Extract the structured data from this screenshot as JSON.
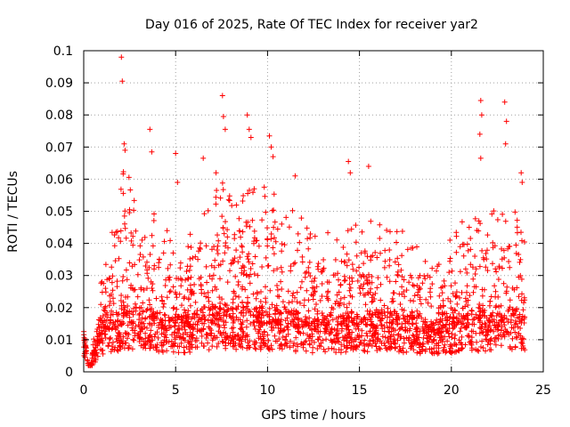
{
  "chart_data": {
    "type": "scatter",
    "title": "Day 016 of 2025, Rate Of TEC Index for receiver yar2",
    "xlabel": "GPS time / hours",
    "ylabel": "ROTI / TECUs",
    "xlim": [
      0,
      25
    ],
    "ylim": [
      0,
      0.1
    ],
    "x_ticks": [
      0,
      5,
      10,
      15,
      20,
      25
    ],
    "y_ticks": [
      0,
      0.01,
      0.02,
      0.03,
      0.04,
      0.05,
      0.06,
      0.07,
      0.08,
      0.09,
      0.1
    ],
    "grid": true,
    "marker": "+",
    "marker_color": "#ff0000",
    "series": [
      {
        "name": "ROTI",
        "envelope": {
          "x": [
            0.0,
            0.3,
            0.9,
            1.3,
            1.8,
            2.2,
            2.6,
            3.0,
            3.5,
            4.0,
            4.5,
            5.0,
            5.5,
            6.0,
            6.5,
            7.0,
            7.5,
            8.0,
            8.5,
            9.0,
            9.5,
            10.0,
            10.5,
            11.0,
            11.5,
            12.0,
            12.5,
            13.0,
            13.5,
            14.0,
            14.5,
            15.0,
            15.5,
            16.0,
            16.5,
            17.0,
            17.5,
            18.0,
            18.5,
            19.0,
            19.5,
            20.0,
            20.5,
            21.0,
            21.5,
            22.0,
            22.5,
            23.0,
            23.5,
            23.9
          ],
          "p95": [
            0.012,
            0.0,
            0.02,
            0.03,
            0.036,
            0.05,
            0.045,
            0.04,
            0.042,
            0.035,
            0.035,
            0.03,
            0.032,
            0.035,
            0.04,
            0.04,
            0.045,
            0.04,
            0.045,
            0.045,
            0.04,
            0.045,
            0.04,
            0.04,
            0.04,
            0.035,
            0.032,
            0.035,
            0.03,
            0.032,
            0.035,
            0.04,
            0.035,
            0.038,
            0.035,
            0.035,
            0.032,
            0.03,
            0.03,
            0.025,
            0.025,
            0.032,
            0.035,
            0.038,
            0.035,
            0.035,
            0.04,
            0.04,
            0.045,
            0.04
          ],
          "base": [
            0.011,
            0.0,
            0.012,
            0.013,
            0.014,
            0.016,
            0.015,
            0.015,
            0.015,
            0.014,
            0.013,
            0.013,
            0.013,
            0.014,
            0.015,
            0.015,
            0.016,
            0.015,
            0.016,
            0.016,
            0.015,
            0.015,
            0.015,
            0.015,
            0.014,
            0.014,
            0.013,
            0.013,
            0.013,
            0.013,
            0.014,
            0.014,
            0.014,
            0.014,
            0.014,
            0.014,
            0.013,
            0.013,
            0.012,
            0.012,
            0.012,
            0.013,
            0.013,
            0.014,
            0.014,
            0.014,
            0.014,
            0.015,
            0.015,
            0.015
          ]
        },
        "spikes": [
          {
            "x": 2.05,
            "y": 0.098
          },
          {
            "x": 2.1,
            "y": 0.0905
          },
          {
            "x": 2.2,
            "y": 0.071
          },
          {
            "x": 2.25,
            "y": 0.069
          },
          {
            "x": 3.6,
            "y": 0.0755
          },
          {
            "x": 3.7,
            "y": 0.0685
          },
          {
            "x": 5.0,
            "y": 0.068
          },
          {
            "x": 5.1,
            "y": 0.059
          },
          {
            "x": 6.5,
            "y": 0.0665
          },
          {
            "x": 7.2,
            "y": 0.062
          },
          {
            "x": 7.55,
            "y": 0.086
          },
          {
            "x": 7.6,
            "y": 0.0795
          },
          {
            "x": 7.7,
            "y": 0.0755
          },
          {
            "x": 8.9,
            "y": 0.08
          },
          {
            "x": 9.0,
            "y": 0.0755
          },
          {
            "x": 9.1,
            "y": 0.073
          },
          {
            "x": 10.1,
            "y": 0.0735
          },
          {
            "x": 10.2,
            "y": 0.07
          },
          {
            "x": 10.3,
            "y": 0.067
          },
          {
            "x": 11.5,
            "y": 0.061
          },
          {
            "x": 14.4,
            "y": 0.0655
          },
          {
            "x": 14.5,
            "y": 0.062
          },
          {
            "x": 15.5,
            "y": 0.064
          },
          {
            "x": 21.6,
            "y": 0.0845
          },
          {
            "x": 21.65,
            "y": 0.08
          },
          {
            "x": 21.55,
            "y": 0.074
          },
          {
            "x": 21.6,
            "y": 0.0665
          },
          {
            "x": 22.9,
            "y": 0.084
          },
          {
            "x": 23.0,
            "y": 0.078
          },
          {
            "x": 22.95,
            "y": 0.071
          },
          {
            "x": 23.8,
            "y": 0.062
          },
          {
            "x": 23.85,
            "y": 0.059
          }
        ]
      }
    ]
  }
}
